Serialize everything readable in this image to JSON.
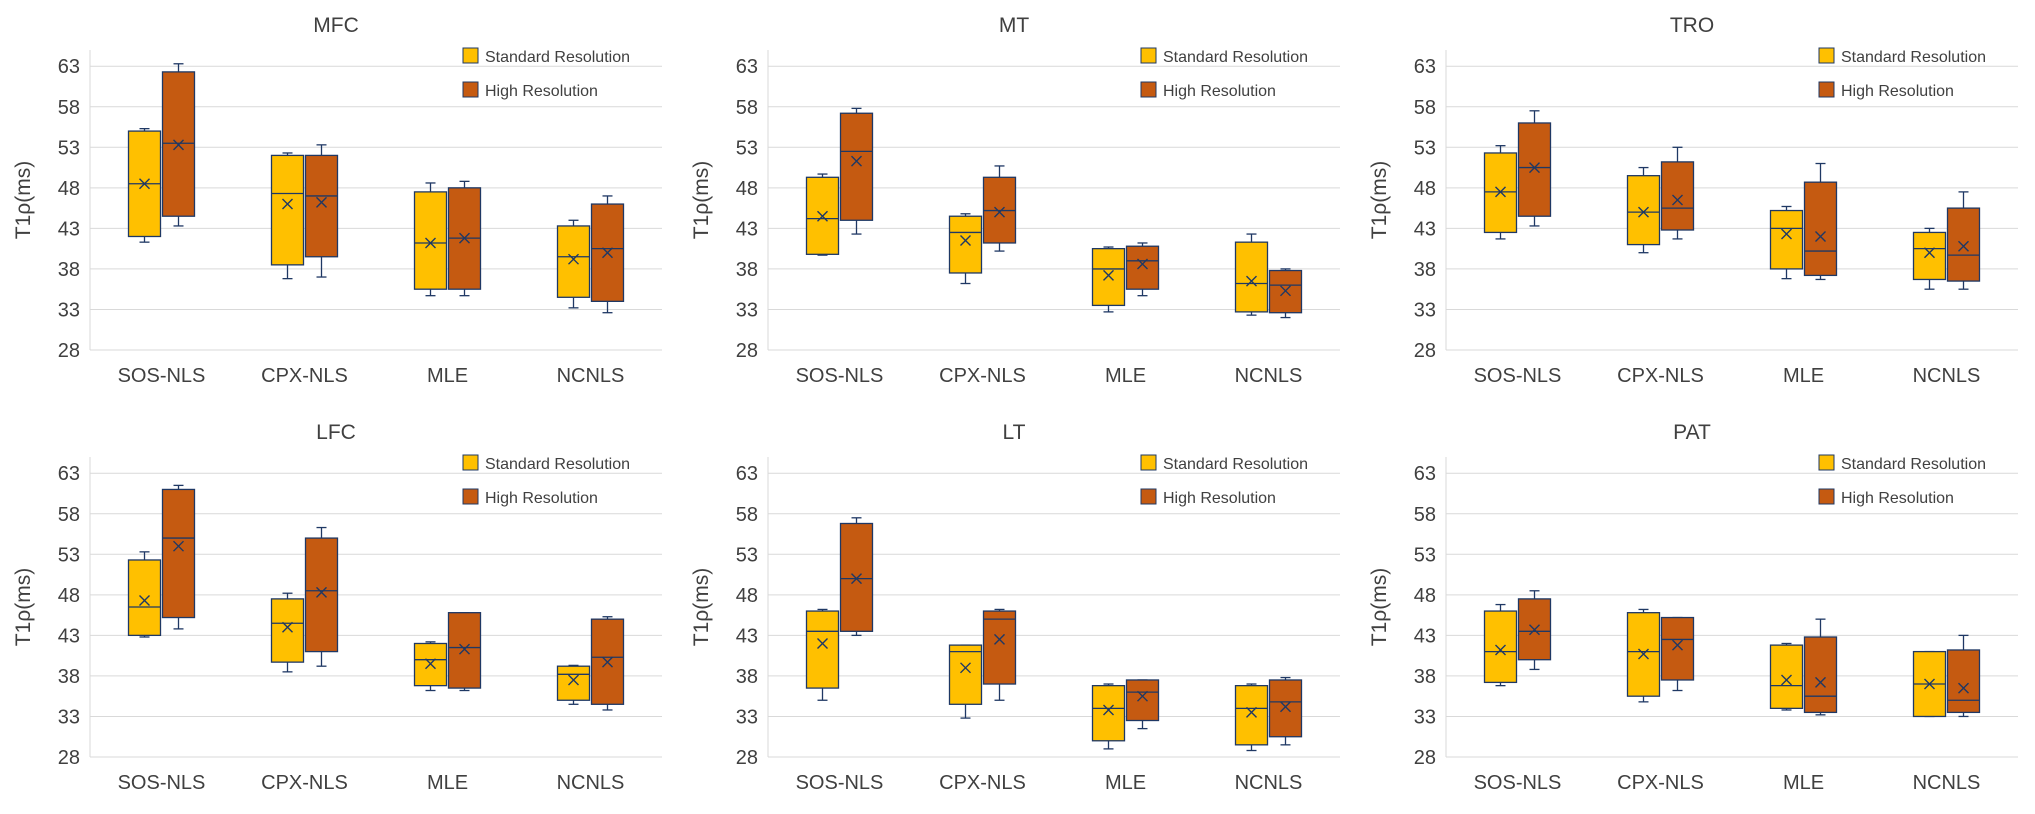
{
  "figure": {
    "colors": {
      "standard": "#FFC000",
      "high": "#C55A11",
      "stroke": "#1F3864",
      "grid": "#D9D9D9",
      "text": "#404040"
    }
  },
  "chart_data": [
    {
      "type": "box",
      "title": "MFC",
      "ylabel": "T1ρ(ms)",
      "ylim": [
        28,
        65
      ],
      "yticks": [
        "28",
        "33",
        "38",
        "43",
        "48",
        "53",
        "58",
        "63"
      ],
      "categories": [
        "SOS-NLS",
        "CPX-NLS",
        "MLE",
        "NCNLS"
      ],
      "legend": [
        "Standard Resolution",
        "High Resolution"
      ],
      "series": [
        {
          "name": "Standard Resolution",
          "boxes": [
            {
              "min": 41.3,
              "q1": 42,
              "median": 48.5,
              "q3": 55,
              "max": 55.3,
              "mean": 48.5
            },
            {
              "min": 36.8,
              "q1": 38.5,
              "median": 47.3,
              "q3": 52,
              "max": 52.3,
              "mean": 46
            },
            {
              "min": 34.7,
              "q1": 35.5,
              "median": 41.2,
              "q3": 47.5,
              "max": 48.6,
              "mean": 41.2
            },
            {
              "min": 33.2,
              "q1": 34.5,
              "median": 39.5,
              "q3": 43.3,
              "max": 44,
              "mean": 39.2
            }
          ]
        },
        {
          "name": "High Resolution",
          "boxes": [
            {
              "min": 43.3,
              "q1": 44.5,
              "median": 53.5,
              "q3": 62.3,
              "max": 63.3,
              "mean": 53.3
            },
            {
              "min": 37,
              "q1": 39.5,
              "median": 47,
              "q3": 52,
              "max": 53.3,
              "mean": 46.2
            },
            {
              "min": 34.7,
              "q1": 35.5,
              "median": 41.8,
              "q3": 48,
              "max": 48.8,
              "mean": 41.8
            },
            {
              "min": 32.6,
              "q1": 34,
              "median": 40.5,
              "q3": 46,
              "max": 47,
              "mean": 40
            }
          ]
        }
      ]
    },
    {
      "type": "box",
      "title": "MT",
      "ylabel": "T1ρ(ms)",
      "ylim": [
        28,
        65
      ],
      "yticks": [
        "28",
        "33",
        "38",
        "43",
        "48",
        "53",
        "58",
        "63"
      ],
      "categories": [
        "SOS-NLS",
        "CPX-NLS",
        "MLE",
        "NCNLS"
      ],
      "legend": [
        "Standard Resolution",
        "High Resolution"
      ],
      "series": [
        {
          "name": "Standard Resolution",
          "boxes": [
            {
              "min": 39.7,
              "q1": 39.8,
              "median": 44.2,
              "q3": 49.3,
              "max": 49.7,
              "mean": 44.5
            },
            {
              "min": 36.2,
              "q1": 37.5,
              "median": 42.5,
              "q3": 44.5,
              "max": 44.8,
              "mean": 41.5
            },
            {
              "min": 32.7,
              "q1": 33.5,
              "median": 38,
              "q3": 40.5,
              "max": 40.7,
              "mean": 37.2
            },
            {
              "min": 32.3,
              "q1": 32.7,
              "median": 36.2,
              "q3": 41.3,
              "max": 42.3,
              "mean": 36.5
            }
          ]
        },
        {
          "name": "High Resolution",
          "boxes": [
            {
              "min": 42.3,
              "q1": 44,
              "median": 52.5,
              "q3": 57.2,
              "max": 57.8,
              "mean": 51.3
            },
            {
              "min": 40.2,
              "q1": 41.2,
              "median": 45.2,
              "q3": 49.3,
              "max": 50.7,
              "mean": 45
            },
            {
              "min": 34.7,
              "q1": 35.5,
              "median": 39,
              "q3": 40.8,
              "max": 41.2,
              "mean": 38.6
            },
            {
              "min": 32,
              "q1": 32.6,
              "median": 36,
              "q3": 37.8,
              "max": 38,
              "mean": 35.3
            }
          ]
        }
      ]
    },
    {
      "type": "box",
      "title": "TRO",
      "ylabel": "T1ρ(ms)",
      "ylim": [
        28,
        65
      ],
      "yticks": [
        "28",
        "33",
        "38",
        "43",
        "48",
        "53",
        "58",
        "63"
      ],
      "categories": [
        "SOS-NLS",
        "CPX-NLS",
        "MLE",
        "NCNLS"
      ],
      "legend": [
        "Standard Resolution",
        "High Resolution"
      ],
      "series": [
        {
          "name": "Standard Resolution",
          "boxes": [
            {
              "min": 41.7,
              "q1": 42.5,
              "median": 47.5,
              "q3": 52.3,
              "max": 53.2,
              "mean": 47.5
            },
            {
              "min": 40,
              "q1": 41,
              "median": 45,
              "q3": 49.5,
              "max": 50.5,
              "mean": 45
            },
            {
              "min": 36.8,
              "q1": 38,
              "median": 43,
              "q3": 45.2,
              "max": 45.7,
              "mean": 42.3
            },
            {
              "min": 35.5,
              "q1": 36.7,
              "median": 40.5,
              "q3": 42.5,
              "max": 43,
              "mean": 40
            }
          ]
        },
        {
          "name": "High Resolution",
          "boxes": [
            {
              "min": 43.3,
              "q1": 44.5,
              "median": 50.5,
              "q3": 56,
              "max": 57.5,
              "mean": 50.5
            },
            {
              "min": 41.7,
              "q1": 42.8,
              "median": 45.5,
              "q3": 51.2,
              "max": 53,
              "mean": 46.5
            },
            {
              "min": 36.7,
              "q1": 37.2,
              "median": 40.2,
              "q3": 48.7,
              "max": 51,
              "mean": 42
            },
            {
              "min": 35.5,
              "q1": 36.5,
              "median": 39.7,
              "q3": 45.5,
              "max": 47.5,
              "mean": 40.8
            }
          ]
        }
      ]
    },
    {
      "type": "box",
      "title": "LFC",
      "ylabel": "T1ρ(ms)",
      "ylim": [
        28,
        65
      ],
      "yticks": [
        "28",
        "33",
        "38",
        "43",
        "48",
        "53",
        "58",
        "63"
      ],
      "categories": [
        "SOS-NLS",
        "CPX-NLS",
        "MLE",
        "NCNLS"
      ],
      "legend": [
        "Standard Resolution",
        "High Resolution"
      ],
      "series": [
        {
          "name": "Standard Resolution",
          "boxes": [
            {
              "min": 42.8,
              "q1": 43,
              "median": 46.5,
              "q3": 52.3,
              "max": 53.3,
              "mean": 47.3
            },
            {
              "min": 38.5,
              "q1": 39.7,
              "median": 44.5,
              "q3": 47.5,
              "max": 48.2,
              "mean": 44
            },
            {
              "min": 36.2,
              "q1": 36.8,
              "median": 40,
              "q3": 42,
              "max": 42.2,
              "mean": 39.5
            },
            {
              "min": 34.5,
              "q1": 35,
              "median": 38.2,
              "q3": 39.2,
              "max": 39.3,
              "mean": 37.5
            }
          ]
        },
        {
          "name": "High Resolution",
          "boxes": [
            {
              "min": 43.8,
              "q1": 45.2,
              "median": 55,
              "q3": 61,
              "max": 61.5,
              "mean": 54
            },
            {
              "min": 39.2,
              "q1": 41,
              "median": 48.5,
              "q3": 55,
              "max": 56.3,
              "mean": 48.3
            },
            {
              "min": 36.2,
              "q1": 36.5,
              "median": 41.5,
              "q3": 45.8,
              "max": 45.8,
              "mean": 41.3
            },
            {
              "min": 33.8,
              "q1": 34.5,
              "median": 40.3,
              "q3": 45,
              "max": 45.3,
              "mean": 39.7
            }
          ]
        }
      ]
    },
    {
      "type": "box",
      "title": "LT",
      "ylabel": "T1ρ(ms)",
      "ylim": [
        28,
        65
      ],
      "yticks": [
        "28",
        "33",
        "38",
        "43",
        "48",
        "53",
        "58",
        "63"
      ],
      "categories": [
        "SOS-NLS",
        "CPX-NLS",
        "MLE",
        "NCNLS"
      ],
      "legend": [
        "Standard Resolution",
        "High Resolution"
      ],
      "series": [
        {
          "name": "Standard Resolution",
          "boxes": [
            {
              "min": 35,
              "q1": 36.5,
              "median": 43.5,
              "q3": 46,
              "max": 46.2,
              "mean": 42
            },
            {
              "min": 32.8,
              "q1": 34.5,
              "median": 41,
              "q3": 41.8,
              "max": 41.8,
              "mean": 39
            },
            {
              "min": 29,
              "q1": 30,
              "median": 34,
              "q3": 36.8,
              "max": 37,
              "mean": 33.8
            },
            {
              "min": 28.8,
              "q1": 29.5,
              "median": 34,
              "q3": 36.8,
              "max": 37,
              "mean": 33.5
            }
          ]
        },
        {
          "name": "High Resolution",
          "boxes": [
            {
              "min": 43,
              "q1": 43.5,
              "median": 50,
              "q3": 56.8,
              "max": 57.5,
              "mean": 50
            },
            {
              "min": 35,
              "q1": 37,
              "median": 45,
              "q3": 46,
              "max": 46.2,
              "mean": 42.5
            },
            {
              "min": 31.5,
              "q1": 32.5,
              "median": 36,
              "q3": 37.5,
              "max": 37.5,
              "mean": 35.5
            },
            {
              "min": 29.5,
              "q1": 30.5,
              "median": 34.8,
              "q3": 37.5,
              "max": 37.8,
              "mean": 34.2
            }
          ]
        }
      ]
    },
    {
      "type": "box",
      "title": "PAT",
      "ylabel": "T1ρ(ms)",
      "ylim": [
        28,
        65
      ],
      "yticks": [
        "28",
        "33",
        "38",
        "43",
        "48",
        "53",
        "58",
        "63"
      ],
      "categories": [
        "SOS-NLS",
        "CPX-NLS",
        "MLE",
        "NCNLS"
      ],
      "legend": [
        "Standard Resolution",
        "High Resolution"
      ],
      "series": [
        {
          "name": "Standard Resolution",
          "boxes": [
            {
              "min": 36.8,
              "q1": 37.2,
              "median": 41,
              "q3": 46,
              "max": 46.8,
              "mean": 41.2
            },
            {
              "min": 34.8,
              "q1": 35.5,
              "median": 41,
              "q3": 45.8,
              "max": 46.2,
              "mean": 40.7
            },
            {
              "min": 33.8,
              "q1": 34,
              "median": 36.8,
              "q3": 41.8,
              "max": 42,
              "mean": 37.5
            },
            {
              "min": 33,
              "q1": 33,
              "median": 37,
              "q3": 41,
              "max": 41,
              "mean": 37
            }
          ]
        },
        {
          "name": "High Resolution",
          "boxes": [
            {
              "min": 38.8,
              "q1": 40,
              "median": 43.5,
              "q3": 47.5,
              "max": 48.5,
              "mean": 43.7
            },
            {
              "min": 36.2,
              "q1": 37.5,
              "median": 42.5,
              "q3": 45.2,
              "max": 45.2,
              "mean": 41.8
            },
            {
              "min": 33.2,
              "q1": 33.5,
              "median": 35.5,
              "q3": 42.8,
              "max": 45,
              "mean": 37.2
            },
            {
              "min": 33,
              "q1": 33.5,
              "median": 35,
              "q3": 41.2,
              "max": 43,
              "mean": 36.5
            }
          ]
        }
      ]
    }
  ]
}
